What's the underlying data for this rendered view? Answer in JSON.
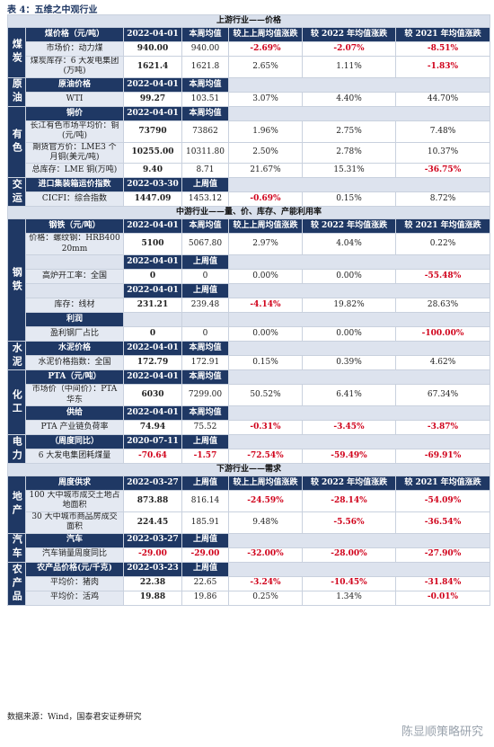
{
  "title": "表 4：五维之中观行业",
  "sections": [
    {
      "title": "上游行业——价格",
      "columns": [
        "较上上周均值涨跌",
        "较 2022 年均值涨跌",
        "较 2021 年均值涨跌"
      ],
      "groups": [
        {
          "sector": "煤炭",
          "rows": [
            {
              "header": "煤价格（元/吨）",
              "date": "2022-04-01",
              "avg_label": "本周均值"
            },
            {
              "name": "市场价：动力煤",
              "value": "940.00",
              "avg": "940.00",
              "wow": "-2.69%",
              "vs2022": "-2.07%",
              "vs2021": "-8.51%"
            },
            {
              "name": "煤炭库存：6 大发电集团(万吨)",
              "value": "1621.4",
              "avg": "1621.8",
              "wow": "2.65%",
              "vs2022": "1.11%",
              "vs2021": "-1.83%"
            }
          ]
        },
        {
          "sector": "原油",
          "rows": [
            {
              "header": "原油价格",
              "date": "2022-04-01",
              "avg_label": "本周均值"
            },
            {
              "name": "WTI",
              "value": "99.27",
              "avg": "103.51",
              "wow": "3.07%",
              "vs2022": "4.40%",
              "vs2021": "44.70%"
            }
          ]
        },
        {
          "sector": "有色",
          "rows": [
            {
              "header": "铜价",
              "date": "2022-04-01",
              "avg_label": "本周均值"
            },
            {
              "name": "长江有色市场平均价：铜(元/吨)",
              "value": "73790",
              "avg": "73862",
              "wow": "1.96%",
              "vs2022": "2.75%",
              "vs2021": "7.48%"
            },
            {
              "name": "期货官方价：LME3 个月铜(美元/吨)",
              "value": "10255.00",
              "avg": "10311.80",
              "wow": "2.50%",
              "vs2022": "2.78%",
              "vs2021": "10.37%"
            },
            {
              "name": "总库存：LME 铜(万吨)",
              "value": "9.40",
              "avg": "8.71",
              "wow": "21.67%",
              "vs2022": "15.31%",
              "vs2021": "-36.75%"
            }
          ]
        },
        {
          "sector": "交运",
          "rows": [
            {
              "header": "进口集装箱运价指数",
              "date": "2022-03-30",
              "avg_label": "上周值"
            },
            {
              "name": "CICFI：综合指数",
              "value": "1447.09",
              "avg": "1453.12",
              "wow": "-0.69%",
              "vs2022": "0.15%",
              "vs2021": "8.72%"
            }
          ]
        }
      ]
    },
    {
      "title": "中游行业——量、价、库存、产能利用率",
      "columns": [
        "较上上周均值涨跌",
        "较 2022 年均值涨跌",
        "较 2021 年均值涨跌"
      ],
      "groups": [
        {
          "sector": "钢铁",
          "rows": [
            {
              "header": "钢铁（元/吨）",
              "date": "2022-04-01",
              "avg_label": "本周均值"
            },
            {
              "name": "价格：螺纹钢：HRB400 20mm",
              "value": "5100",
              "avg": "5067.80",
              "wow": "2.97%",
              "vs2022": "4.04%",
              "vs2021": "0.22%"
            },
            {
              "date": "2022-04-01",
              "avg_label": "上周值"
            },
            {
              "name": "高炉开工率：全国",
              "value": "0",
              "avg": "0",
              "wow": "0.00%",
              "vs2022": "0.00%",
              "vs2021": "-55.48%"
            },
            {
              "date": "2022-04-01",
              "avg_label": "上周值"
            },
            {
              "name": "库存：线材",
              "value": "231.21",
              "avg": "239.48",
              "wow": "-4.14%",
              "vs2022": "19.82%",
              "vs2021": "28.63%"
            },
            {
              "header": "利润"
            },
            {
              "name": "盈利钢厂占比",
              "value": "0",
              "avg": "0",
              "wow": "0.00%",
              "vs2022": "0.00%",
              "vs2021": "-100.00%"
            }
          ]
        },
        {
          "sector": "水泥",
          "rows": [
            {
              "header": "水泥价格",
              "date": "2022-04-01",
              "avg_label": "本周均值"
            },
            {
              "name": "水泥价格指数：全国",
              "value": "172.79",
              "avg": "172.91",
              "wow": "0.15%",
              "vs2022": "0.39%",
              "vs2021": "4.62%"
            }
          ]
        },
        {
          "sector": "化工",
          "rows": [
            {
              "header": "PTA（元/吨）",
              "date": "2022-04-01",
              "avg_label": "本周均值"
            },
            {
              "name": "市场价（中间价）：PTA 华东",
              "value": "6030",
              "avg": "7299.00",
              "wow": "50.52%",
              "vs2022": "6.41%",
              "vs2021": "67.34%"
            },
            {
              "header": "供给",
              "date": "2022-04-01",
              "avg_label": "本周均值"
            },
            {
              "name": "PTA 产业链负荷率",
              "value": "74.94",
              "avg": "75.52",
              "wow": "-0.31%",
              "vs2022": "-3.45%",
              "vs2021": "-3.87%"
            }
          ]
        },
        {
          "sector": "电力",
          "rows": [
            {
              "header": "（周度同比）",
              "date": "2020-07-11",
              "avg_label": "上周值"
            },
            {
              "name": "6 大发电集团耗煤量",
              "value": "-70.64",
              "avg": "-1.57",
              "wow": "-72.54%",
              "vs2022": "-59.49%",
              "vs2021": "-69.91%"
            }
          ]
        }
      ]
    },
    {
      "title": "下游行业——需求",
      "columns": [
        "较上上周均值涨跌",
        "较 2022 年均值涨跌",
        "较 2021 年均值涨跌"
      ],
      "groups": [
        {
          "sector": "地产",
          "rows": [
            {
              "header": "周度供求",
              "date": "2022-03-27",
              "avg_label": "上周值"
            },
            {
              "name": "100 大中城市成交土地占地面积",
              "value": "873.88",
              "avg": "816.14",
              "wow": "-24.59%",
              "vs2022": "-28.14%",
              "vs2021": "-54.09%"
            },
            {
              "name": "30 大中城市商品房成交面积",
              "value": "224.45",
              "avg": "185.91",
              "wow": "9.48%",
              "vs2022": "-5.56%",
              "vs2021": "-36.54%"
            }
          ]
        },
        {
          "sector": "汽车",
          "rows": [
            {
              "header": "汽车",
              "date": "2022-03-27",
              "avg_label": "上周值"
            },
            {
              "name": "汽车销量周度同比",
              "value": "-29.00",
              "avg": "-29.00",
              "wow": "-32.00%",
              "vs2022": "-28.00%",
              "vs2021": "-27.90%"
            }
          ]
        },
        {
          "sector": "农产品",
          "rows": [
            {
              "header": "农产品价格(元/千克)",
              "date": "2022-03-23",
              "avg_label": "上周值"
            },
            {
              "name": "平均价：猪肉",
              "value": "22.38",
              "avg": "22.65",
              "wow": "-3.24%",
              "vs2022": "-10.45%",
              "vs2021": "-31.84%"
            },
            {
              "name": "平均价：活鸡",
              "value": "19.88",
              "avg": "19.86",
              "wow": "0.25%",
              "vs2022": "1.34%",
              "vs2021": "-0.01%"
            }
          ]
        }
      ]
    }
  ],
  "source": "数据来源：Wind，国泰君安证券研究",
  "watermark": "陈显顺策略研究"
}
